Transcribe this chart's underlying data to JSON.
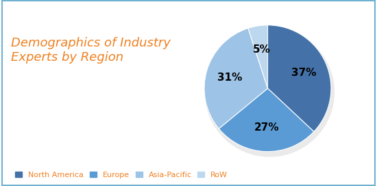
{
  "title": "Demographics of Industry\nExperts by Region",
  "title_color": "#F08020",
  "title_fontsize": 13,
  "labels": [
    "North America",
    "Europe",
    "Asia-Pacific",
    "RoW"
  ],
  "values": [
    37,
    27,
    31,
    5
  ],
  "colors": [
    "#4472A8",
    "#5B9BD5",
    "#9DC3E6",
    "#BDD7EE"
  ],
  "pct_labels": [
    "37%",
    "27%",
    "31%",
    "5%"
  ],
  "legend_text_color": "#F08020",
  "background_color": "#FFFFFF",
  "border_color": "#70B0D0",
  "pct_fontsize": 11
}
